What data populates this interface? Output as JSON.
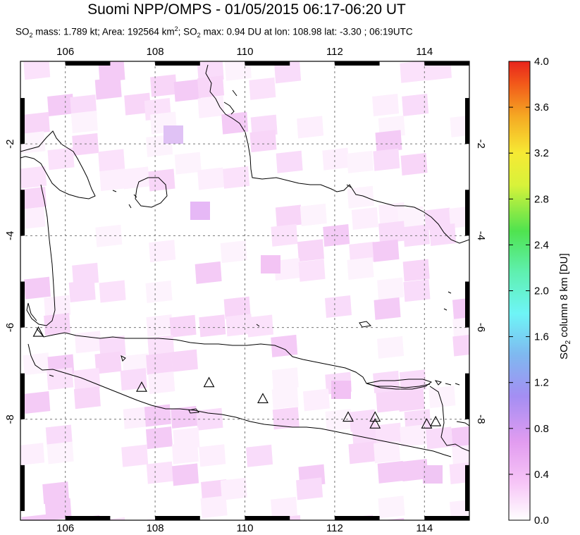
{
  "title": "Suomi NPP/OMPS - 01/05/2015 06:17-06:20 UT",
  "subtitle": {
    "so2_prefix": "SO",
    "so2_sub": "2",
    "mass_text": " mass: 1.789 kt; Area: 192564 km",
    "area_sup": "2",
    "max_prefix": "; SO",
    "max_sub": "2",
    "max_text": " max: 0.94 DU at lon: 108.98 lat: -3.30 ; 06:19UTC"
  },
  "map": {
    "lon_ticks": [
      "106",
      "108",
      "110",
      "112",
      "114"
    ],
    "lat_ticks": [
      "-2",
      "-4",
      "-6",
      "-8"
    ],
    "lon_range": [
      105,
      115
    ],
    "lat_range": [
      -10.2,
      -0.2
    ],
    "grid": true,
    "volcano_marker": "triangle-outline-icon",
    "volcanoes": [
      {
        "lon": 105.4,
        "lat": -6.1
      },
      {
        "lon": 107.7,
        "lat": -7.3
      },
      {
        "lon": 109.2,
        "lat": -7.2
      },
      {
        "lon": 110.4,
        "lat": -7.55
      },
      {
        "lon": 112.3,
        "lat": -7.95
      },
      {
        "lon": 112.9,
        "lat": -7.95
      },
      {
        "lon": 112.9,
        "lat": -8.1
      },
      {
        "lon": 114.05,
        "lat": -8.1
      },
      {
        "lon": 114.25,
        "lat": -8.05
      }
    ]
  },
  "colorbar": {
    "ticks": [
      "4.0",
      "3.6",
      "3.2",
      "2.8",
      "2.4",
      "2.0",
      "1.6",
      "1.2",
      "0.8",
      "0.4",
      "0.0"
    ],
    "label_prefix": "SO",
    "label_sub": "2",
    "label_text": " column 8 km [DU]",
    "colors": [
      "#ffffff",
      "#f7c6f7",
      "#e29cf0",
      "#a48ef3",
      "#7fb8f0",
      "#6ef5f7",
      "#5ff0b0",
      "#4fe34f",
      "#d8f23a",
      "#f6ea34",
      "#f5a923",
      "#f25a1a",
      "#e8241c"
    ]
  }
}
